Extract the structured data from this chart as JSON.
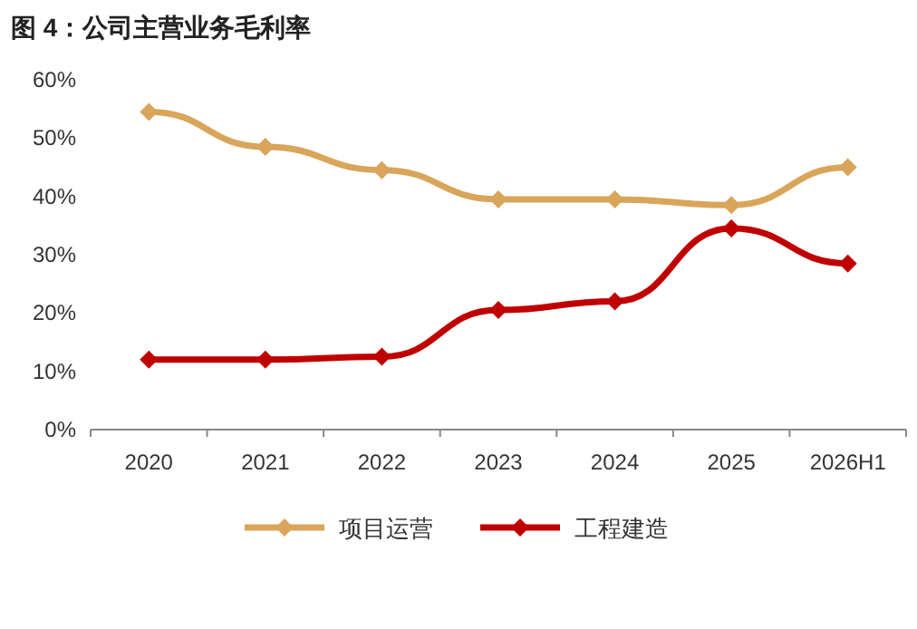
{
  "chart_data": {
    "type": "line",
    "title": "图 4：公司主营业务毛利率",
    "categories": [
      "2020",
      "2021",
      "2022",
      "2023",
      "2024",
      "2025",
      "2026H1"
    ],
    "series": [
      {
        "name": "项目运营",
        "color": "#d9a55a",
        "values": [
          54.5,
          48.5,
          44.5,
          39.5,
          39.5,
          38.5,
          45
        ]
      },
      {
        "name": "工程建造",
        "color": "#c00000",
        "values": [
          12,
          12,
          12.5,
          20.5,
          22,
          34.5,
          28.5
        ]
      }
    ],
    "ylim": [
      0,
      60
    ],
    "yticks": [
      {
        "value": 0,
        "label": "0%"
      },
      {
        "value": 10,
        "label": "10%"
      },
      {
        "value": 20,
        "label": "20%"
      },
      {
        "value": 30,
        "label": "30%"
      },
      {
        "value": 40,
        "label": "40%"
      },
      {
        "value": 50,
        "label": "50%"
      },
      {
        "value": 60,
        "label": "60%"
      }
    ],
    "marker": "diamond",
    "legend": "bottom",
    "grid": false
  }
}
